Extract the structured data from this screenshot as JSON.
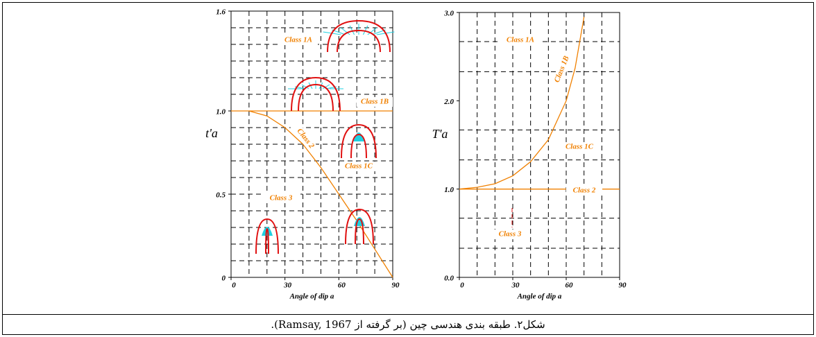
{
  "chart_data": [
    {
      "type": "line",
      "xlabel": "Angle of dip a",
      "ylabel": "t'a",
      "xlim": [
        0,
        90
      ],
      "xticks": [
        0,
        30,
        60,
        90
      ],
      "ylim": [
        0,
        1.6
      ],
      "yticks": [
        0,
        0.5,
        {
          "value": 1,
          "label": "1.0"
        },
        1.6
      ],
      "xgrid": [
        10,
        20,
        30,
        40,
        50,
        60,
        70,
        80
      ],
      "ygrid": [
        0.1,
        0.2,
        0.3,
        0.4,
        0.5,
        0.6,
        0.7,
        0.8,
        0.9,
        1.0,
        1.1,
        1.2,
        1.3,
        1.4,
        1.5
      ],
      "series": [
        {
          "name": "Class 1B",
          "color": "#f08000",
          "x": [
            0,
            90
          ],
          "values": [
            1,
            1
          ]
        },
        {
          "name": "Class 2",
          "color": "#f08000",
          "x": [
            10,
            20,
            30,
            40,
            50,
            60,
            70,
            80,
            90
          ],
          "values": [
            1.0,
            0.97,
            0.9,
            0.8,
            0.66,
            0.5,
            0.34,
            0.17,
            0
          ]
        }
      ],
      "annotations": [
        "Class 1A",
        "Class 1C",
        "Class 3"
      ]
    },
    {
      "type": "line",
      "xlabel": "Angle of dip a",
      "ylabel": "T'a",
      "xlim": [
        0,
        90
      ],
      "xticks": [
        0,
        30,
        60,
        90
      ],
      "ylim": [
        0,
        3
      ],
      "yticks": [
        {
          "value": 0,
          "label": "0.0"
        },
        {
          "value": 1,
          "label": "1.0"
        },
        {
          "value": 2,
          "label": "2.0"
        },
        {
          "value": 3,
          "label": "3.0"
        }
      ],
      "xgrid": [
        10,
        20,
        30,
        40,
        50,
        60,
        70,
        80
      ],
      "ygrid": [
        0.33,
        0.67,
        1.33,
        1.67,
        2.33,
        2.67
      ],
      "series": [
        {
          "name": "Class 1B",
          "color": "#f08000",
          "x": [
            0,
            10,
            20,
            30,
            40,
            50,
            60,
            65,
            70
          ],
          "values": [
            1.0,
            1.02,
            1.06,
            1.15,
            1.31,
            1.56,
            2.0,
            2.37,
            2.95
          ]
        },
        {
          "name": "Class 2",
          "color": "#f08000",
          "x": [
            0,
            90
          ],
          "values": [
            1,
            1
          ]
        }
      ],
      "annotations": [
        "Class 1A",
        "Class 1C",
        "Class 3"
      ]
    }
  ],
  "caption": "شکل۲. طبقه بندی هندسی چین (بر گرفته از Ramsay, 1967)."
}
